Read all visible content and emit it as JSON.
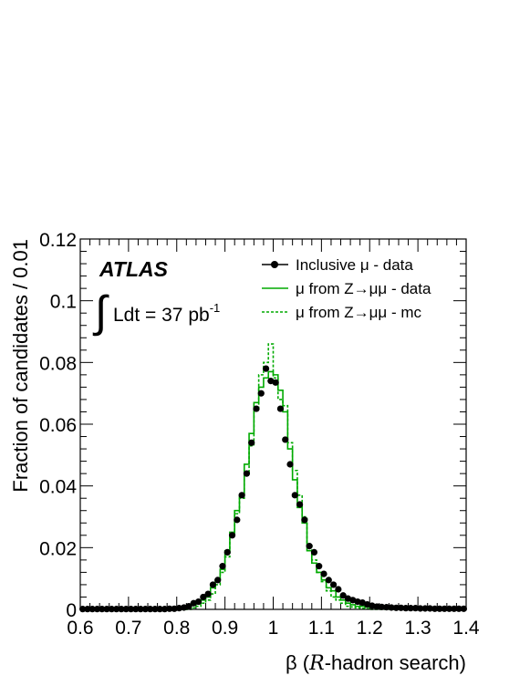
{
  "chart_data": {
    "type": "line",
    "experiment_label": "ATLAS",
    "luminosity": {
      "integral_sign": "∫",
      "text": "Ldt = 37 pb",
      "exponent": "-1"
    },
    "xlabel": {
      "prefix": "β (",
      "italic": "R",
      "suffix": "-hadron search)"
    },
    "ylabel": "Fraction of candidates / 0.01",
    "xlim": [
      0.6,
      1.4
    ],
    "ylim": [
      0,
      0.12
    ],
    "x_ticks": [
      0.6,
      0.7,
      0.8,
      0.9,
      1,
      1.1,
      1.2,
      1.3,
      1.4
    ],
    "x_tick_labels": [
      "0.6",
      "0.7",
      "0.8",
      "0.9",
      "1",
      "1.1",
      "1.2",
      "1.3",
      "1.4"
    ],
    "y_ticks": [
      0,
      0.02,
      0.04,
      0.06,
      0.08,
      0.1,
      0.12
    ],
    "y_tick_labels": [
      "0",
      "0.02",
      "0.04",
      "0.06",
      "0.08",
      "0.1",
      "0.12"
    ],
    "bin_width": 0.01,
    "legend_position": "top-right",
    "colors": {
      "data": "#000000",
      "z_data": "#00aa00",
      "z_mc": "#00aa00"
    },
    "series": [
      {
        "name": "Inclusive μ - data",
        "style": "markers",
        "x": [
          0.605,
          0.615,
          0.625,
          0.635,
          0.645,
          0.655,
          0.665,
          0.675,
          0.685,
          0.695,
          0.705,
          0.715,
          0.725,
          0.735,
          0.745,
          0.755,
          0.765,
          0.775,
          0.785,
          0.795,
          0.805,
          0.815,
          0.825,
          0.835,
          0.845,
          0.855,
          0.865,
          0.875,
          0.885,
          0.895,
          0.905,
          0.915,
          0.925,
          0.935,
          0.945,
          0.955,
          0.965,
          0.975,
          0.985,
          0.995,
          1.005,
          1.015,
          1.025,
          1.035,
          1.045,
          1.055,
          1.065,
          1.075,
          1.085,
          1.095,
          1.105,
          1.115,
          1.125,
          1.135,
          1.145,
          1.155,
          1.165,
          1.175,
          1.185,
          1.195,
          1.205,
          1.215,
          1.225,
          1.235,
          1.245,
          1.255,
          1.265,
          1.275,
          1.285,
          1.295,
          1.305,
          1.315,
          1.325,
          1.335,
          1.345,
          1.355,
          1.365,
          1.375,
          1.385,
          1.395
        ],
        "values": [
          0.0001,
          0.0001,
          0.0001,
          0.0001,
          0.0001,
          0.0001,
          0.0001,
          0.0001,
          0.0001,
          0.0001,
          0.0001,
          0.0001,
          0.0001,
          0.0001,
          0.0001,
          0.0001,
          0.0001,
          0.0001,
          0.0002,
          0.0002,
          0.0004,
          0.0006,
          0.001,
          0.002,
          0.0025,
          0.004,
          0.005,
          0.008,
          0.0095,
          0.014,
          0.0185,
          0.024,
          0.029,
          0.037,
          0.044,
          0.054,
          0.065,
          0.07,
          0.078,
          0.074,
          0.0735,
          0.065,
          0.055,
          0.047,
          0.037,
          0.034,
          0.029,
          0.0205,
          0.0185,
          0.014,
          0.0115,
          0.0095,
          0.008,
          0.0065,
          0.0045,
          0.0035,
          0.003,
          0.0025,
          0.0022,
          0.0016,
          0.0012,
          0.0009,
          0.0008,
          0.0007,
          0.0006,
          0.0005,
          0.0005,
          0.0004,
          0.0004,
          0.0004,
          0.0003,
          0.0003,
          0.0003,
          0.0002,
          0.0002,
          0.0002,
          0.0002,
          0.0002,
          0.0002,
          0.0002
        ]
      },
      {
        "name": "μ from Z→μμ - data",
        "style": "solid-step",
        "x_edges_start": 0.6,
        "values": [
          0,
          0,
          0,
          0,
          0,
          0,
          0,
          0,
          0,
          0,
          0,
          0,
          0,
          0,
          0,
          0,
          0,
          0,
          0,
          0,
          0,
          0,
          0.0005,
          0.0015,
          0.002,
          0.003,
          0.004,
          0.007,
          0.0095,
          0.013,
          0.019,
          0.025,
          0.032,
          0.037,
          0.047,
          0.057,
          0.067,
          0.072,
          0.075,
          0.077,
          0.076,
          0.071,
          0.064,
          0.052,
          0.042,
          0.033,
          0.028,
          0.019,
          0.015,
          0.012,
          0.0095,
          0.007,
          0.006,
          0.004,
          0.003,
          0.002,
          0.0015,
          0.001,
          0.001,
          0.0008,
          0.0005,
          0.0005,
          0.0003,
          0.0003,
          0.0002,
          0,
          0,
          0,
          0,
          0,
          0,
          0,
          0,
          0,
          0,
          0,
          0,
          0,
          0,
          0
        ]
      },
      {
        "name": "μ from Z→μμ - mc",
        "style": "dashed-step",
        "x_edges_start": 0.6,
        "values": [
          0,
          0,
          0,
          0,
          0,
          0,
          0,
          0,
          0,
          0,
          0,
          0,
          0,
          0,
          0,
          0,
          0,
          0,
          0,
          0,
          0,
          0,
          0,
          0.0005,
          0.001,
          0.002,
          0.003,
          0.005,
          0.008,
          0.012,
          0.017,
          0.024,
          0.031,
          0.036,
          0.044,
          0.053,
          0.065,
          0.076,
          0.08,
          0.086,
          0.075,
          0.068,
          0.066,
          0.054,
          0.045,
          0.037,
          0.03,
          0.021,
          0.016,
          0.012,
          0.009,
          0.006,
          0.004,
          0.003,
          0.002,
          0.001,
          0.0008,
          0.0005,
          0.0003,
          0.0002,
          0,
          0,
          0,
          0,
          0,
          0,
          0,
          0,
          0,
          0,
          0,
          0,
          0,
          0,
          0,
          0,
          0,
          0,
          0,
          0
        ]
      }
    ]
  }
}
